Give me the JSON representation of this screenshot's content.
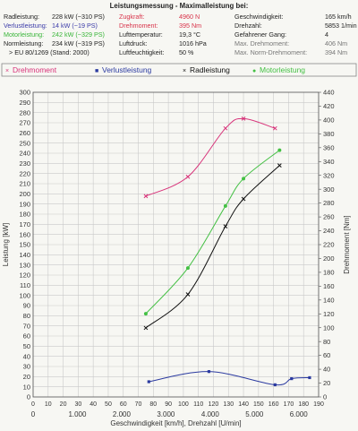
{
  "header": {
    "title": "Leistungsmessung - Maximalleistung bei:",
    "col1": [
      {
        "label": "Radleistung:",
        "value": "228 kW (~310 PS)",
        "color": "black"
      },
      {
        "label": "Verlustleistung:",
        "value": "14 kW (~19 PS)",
        "color": "blue"
      },
      {
        "label": "Motorleistung:",
        "value": "242 kW (~329 PS)",
        "color": "green"
      },
      {
        "label": "Normleistung:",
        "value": "234 kW (~319 PS)",
        "color": "black"
      },
      {
        "label": "> EU 80/1269 (Stand: 2000)",
        "value": "",
        "color": "black"
      }
    ],
    "col2": [
      {
        "label": "Zugkraft:",
        "value": "4960 N",
        "color": "red"
      },
      {
        "label": "Drehmoment:",
        "value": "395 Nm",
        "color": "red"
      },
      {
        "label": "Lufttemperatur:",
        "value": "19,3 °C",
        "color": "black"
      },
      {
        "label": "Luftdruck:",
        "value": "1016 hPa",
        "color": "black"
      },
      {
        "label": "Luftfeuchtigkeit:",
        "value": "50 %",
        "color": "black"
      }
    ],
    "col3": [
      {
        "label": "Geschwindigkeit:",
        "value": "165 km/h",
        "color": "black"
      },
      {
        "label": "Drehzahl:",
        "value": "5853 1/min",
        "color": "black"
      },
      {
        "label": "Gefahrener Gang:",
        "value": "4",
        "color": "black"
      },
      {
        "label": "Max. Drehmoment:",
        "value": "406 Nm",
        "color": "gray"
      },
      {
        "label": "Max. Norm-Drehmoment:",
        "value": "394 Nm",
        "color": "gray"
      }
    ]
  },
  "colors": {
    "drehmoment": "#d8337a",
    "verlust": "#2b3aa0",
    "rad": "#111111",
    "motor": "#44c044"
  },
  "chart_data": {
    "type": "line",
    "xlabel": "Geschwindigkeit [km/h], Drehzahl [U/min]",
    "ylabel_left": "Leistung [kW]",
    "ylabel_right": "Drehmoment [Nm]",
    "x_ticks_speed": [
      "0",
      "10",
      "20",
      "30",
      "40",
      "50",
      "60",
      "70",
      "80",
      "90",
      "100",
      "110",
      "120",
      "130",
      "140",
      "150",
      "160",
      "170",
      "180",
      "190"
    ],
    "x_ticks_rpm": [
      "0",
      "1.000",
      "2.000",
      "3.000",
      "4.000",
      "5.000",
      "6.000"
    ],
    "ylim_left": [
      0,
      300
    ],
    "ylim_right": [
      0,
      440
    ],
    "y_ticks_left": [
      "0",
      "10",
      "20",
      "30",
      "40",
      "50",
      "60",
      "70",
      "80",
      "90",
      "100",
      "110",
      "120",
      "130",
      "140",
      "150",
      "160",
      "170",
      "180",
      "190",
      "200",
      "210",
      "220",
      "230",
      "240",
      "250",
      "260",
      "270",
      "280",
      "290",
      "300"
    ],
    "y_ticks_right": [
      "0",
      "20",
      "40",
      "60",
      "80",
      "100",
      "120",
      "140",
      "160",
      "180",
      "200",
      "220",
      "240",
      "260",
      "280",
      "300",
      "320",
      "340",
      "360",
      "380",
      "400",
      "420",
      "440"
    ],
    "legend": [
      "Drehmoment",
      "Verlustleistung",
      "Radleistung",
      "Motorleistung"
    ],
    "series": [
      {
        "name": "Drehmoment",
        "axis": "right",
        "marker": "×",
        "x_speed": [
          75,
          103,
          128,
          140,
          161
        ],
        "values": [
          290,
          318,
          388,
          402,
          388
        ]
      },
      {
        "name": "Verlustleistung",
        "axis": "left",
        "marker": "■",
        "x_speed": [
          77,
          117,
          161,
          172,
          184
        ],
        "values": [
          15,
          25,
          12,
          18,
          19
        ]
      },
      {
        "name": "Radleistung",
        "axis": "left",
        "marker": "×",
        "x_speed": [
          75,
          103,
          128,
          140,
          164
        ],
        "values": [
          68,
          101,
          168,
          195,
          228
        ]
      },
      {
        "name": "Motorleistung",
        "axis": "left",
        "marker": "●",
        "x_speed": [
          75,
          103,
          128,
          140,
          164
        ],
        "values": [
          82,
          127,
          188,
          215,
          243
        ]
      }
    ]
  }
}
